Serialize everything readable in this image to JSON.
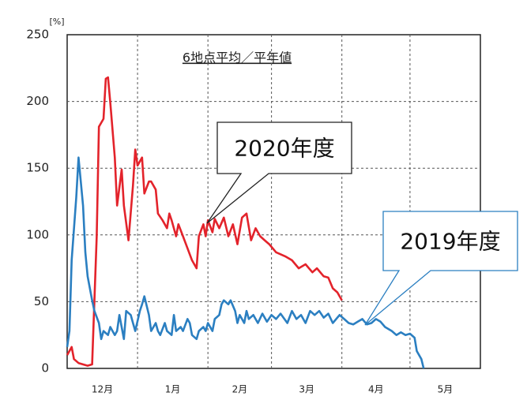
{
  "chart_data": {
    "type": "line",
    "title": "6地点平均／平年値",
    "y_unit": "[%]",
    "xlim": [
      0,
      182
    ],
    "xticks": [
      {
        "value": 15.5,
        "label": "12月"
      },
      {
        "value": 46.5,
        "label": "1月"
      },
      {
        "value": 76,
        "label": "2月"
      },
      {
        "value": 105.5,
        "label": "3月"
      },
      {
        "value": 136,
        "label": "4月"
      },
      {
        "value": 166.5,
        "label": "5月"
      }
    ],
    "xgrid": [
      31,
      62,
      90,
      121,
      151
    ],
    "ylim": [
      0,
      250
    ],
    "yticks": [
      0,
      50,
      100,
      150,
      200,
      250
    ],
    "grid": true,
    "annotations": [
      "2020年度",
      "2019年度"
    ],
    "series": [
      {
        "name": "2020年度",
        "color": "#e3232b",
        "x": [
          0,
          2,
          3,
          5,
          9,
          11,
          13,
          14,
          16,
          17,
          18,
          19,
          21,
          22,
          24,
          25,
          27,
          29,
          30,
          31,
          33,
          34,
          36,
          37,
          39,
          40,
          42,
          44,
          45,
          46,
          48,
          49,
          51,
          53,
          55,
          57,
          58,
          60,
          61,
          62,
          64,
          65,
          67,
          69,
          71,
          73,
          75,
          77,
          79,
          81,
          83,
          85,
          87,
          89,
          92,
          96,
          99,
          102,
          105,
          108,
          110,
          113,
          115,
          117,
          119,
          121
        ],
        "values": [
          10,
          16,
          7,
          4,
          2,
          3,
          99,
          181,
          187,
          217,
          218,
          199,
          158,
          122,
          149,
          122,
          96,
          137,
          164,
          152,
          158,
          131,
          140,
          140,
          134,
          116,
          111,
          105,
          116,
          111,
          99,
          108,
          99,
          90,
          81,
          75,
          99,
          108,
          99,
          111,
          102,
          112,
          105,
          113,
          99,
          108,
          93,
          113,
          116,
          96,
          105,
          99,
          96,
          93,
          87,
          84,
          81,
          75,
          78,
          72,
          75,
          69,
          68,
          60,
          57,
          51
        ]
      },
      {
        "name": "2019年度",
        "color": "#2b7fc1",
        "x": [
          0,
          1,
          2,
          4,
          5,
          7,
          8,
          9,
          11,
          12,
          14,
          15,
          16,
          18,
          19,
          21,
          22,
          23,
          25,
          26,
          28,
          29,
          30,
          32,
          33,
          34,
          36,
          37,
          39,
          40,
          41,
          43,
          44,
          46,
          47,
          48,
          50,
          51,
          53,
          54,
          55,
          57,
          58,
          60,
          61,
          62,
          64,
          65,
          67,
          68,
          69,
          71,
          72,
          74,
          75,
          76,
          78,
          79,
          80,
          82,
          84,
          86,
          88,
          90,
          92,
          94,
          97,
          99,
          101,
          103,
          105,
          107,
          109,
          111,
          113,
          115,
          117,
          120,
          122,
          124,
          126,
          128,
          130,
          132,
          134,
          136,
          138,
          140,
          143,
          145,
          147,
          149,
          151,
          153,
          154,
          156,
          157
        ],
        "values": [
          16,
          28,
          81,
          128,
          158,
          122,
          87,
          69,
          51,
          43,
          34,
          22,
          28,
          25,
          31,
          25,
          28,
          40,
          22,
          43,
          40,
          34,
          28,
          43,
          48,
          54,
          40,
          28,
          34,
          28,
          25,
          34,
          28,
          25,
          40,
          28,
          31,
          28,
          37,
          34,
          25,
          22,
          28,
          31,
          28,
          34,
          28,
          37,
          40,
          48,
          51,
          48,
          51,
          43,
          34,
          40,
          34,
          43,
          37,
          40,
          34,
          41,
          35,
          40,
          37,
          41,
          34,
          43,
          37,
          40,
          34,
          43,
          40,
          43,
          38,
          41,
          34,
          40,
          37,
          34,
          33,
          35,
          37,
          33,
          34,
          37,
          35,
          31,
          28,
          25,
          27,
          25,
          26,
          23,
          13,
          7,
          0
        ]
      }
    ]
  }
}
